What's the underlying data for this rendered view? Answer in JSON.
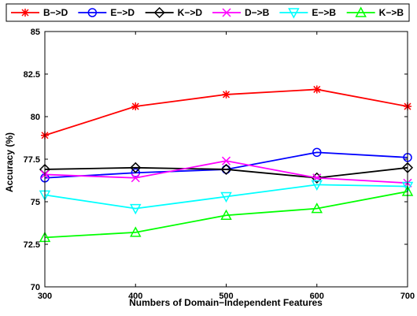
{
  "chart_data": {
    "type": "line",
    "title": "",
    "xlabel": "Numbers of Domain−Independent Features",
    "ylabel": "Accuracy (%)",
    "x": [
      300,
      400,
      500,
      600,
      700
    ],
    "xlim": [
      300,
      700
    ],
    "ylim": [
      70,
      85
    ],
    "x_ticks": [
      "300",
      "400",
      "500",
      "600",
      "700"
    ],
    "y_ticks": [
      "70",
      "72.5",
      "75",
      "77.5",
      "80",
      "82.5",
      "85"
    ],
    "grid": false,
    "legend_position": "top (outside, single row)",
    "series": [
      {
        "name": "B−>D",
        "color": "#ff0000",
        "marker": "asterisk",
        "values": [
          78.9,
          80.6,
          81.3,
          81.6,
          80.6
        ]
      },
      {
        "name": "E−>D",
        "color": "#0000ff",
        "marker": "circle",
        "values": [
          76.4,
          76.7,
          76.9,
          77.9,
          77.6
        ]
      },
      {
        "name": "K−>D",
        "color": "#000000",
        "marker": "diamond",
        "values": [
          76.9,
          77.0,
          76.9,
          76.4,
          77.0
        ]
      },
      {
        "name": "D−>B",
        "color": "#ff00ff",
        "marker": "x",
        "values": [
          76.6,
          76.4,
          77.4,
          76.4,
          76.1
        ]
      },
      {
        "name": "E−>B",
        "color": "#00ffff",
        "marker": "triangle-down",
        "values": [
          75.4,
          74.6,
          75.3,
          76.0,
          75.9
        ]
      },
      {
        "name": "K−>B",
        "color": "#00ff00",
        "marker": "triangle-up",
        "values": [
          72.9,
          73.2,
          74.2,
          74.6,
          75.6
        ]
      }
    ]
  }
}
